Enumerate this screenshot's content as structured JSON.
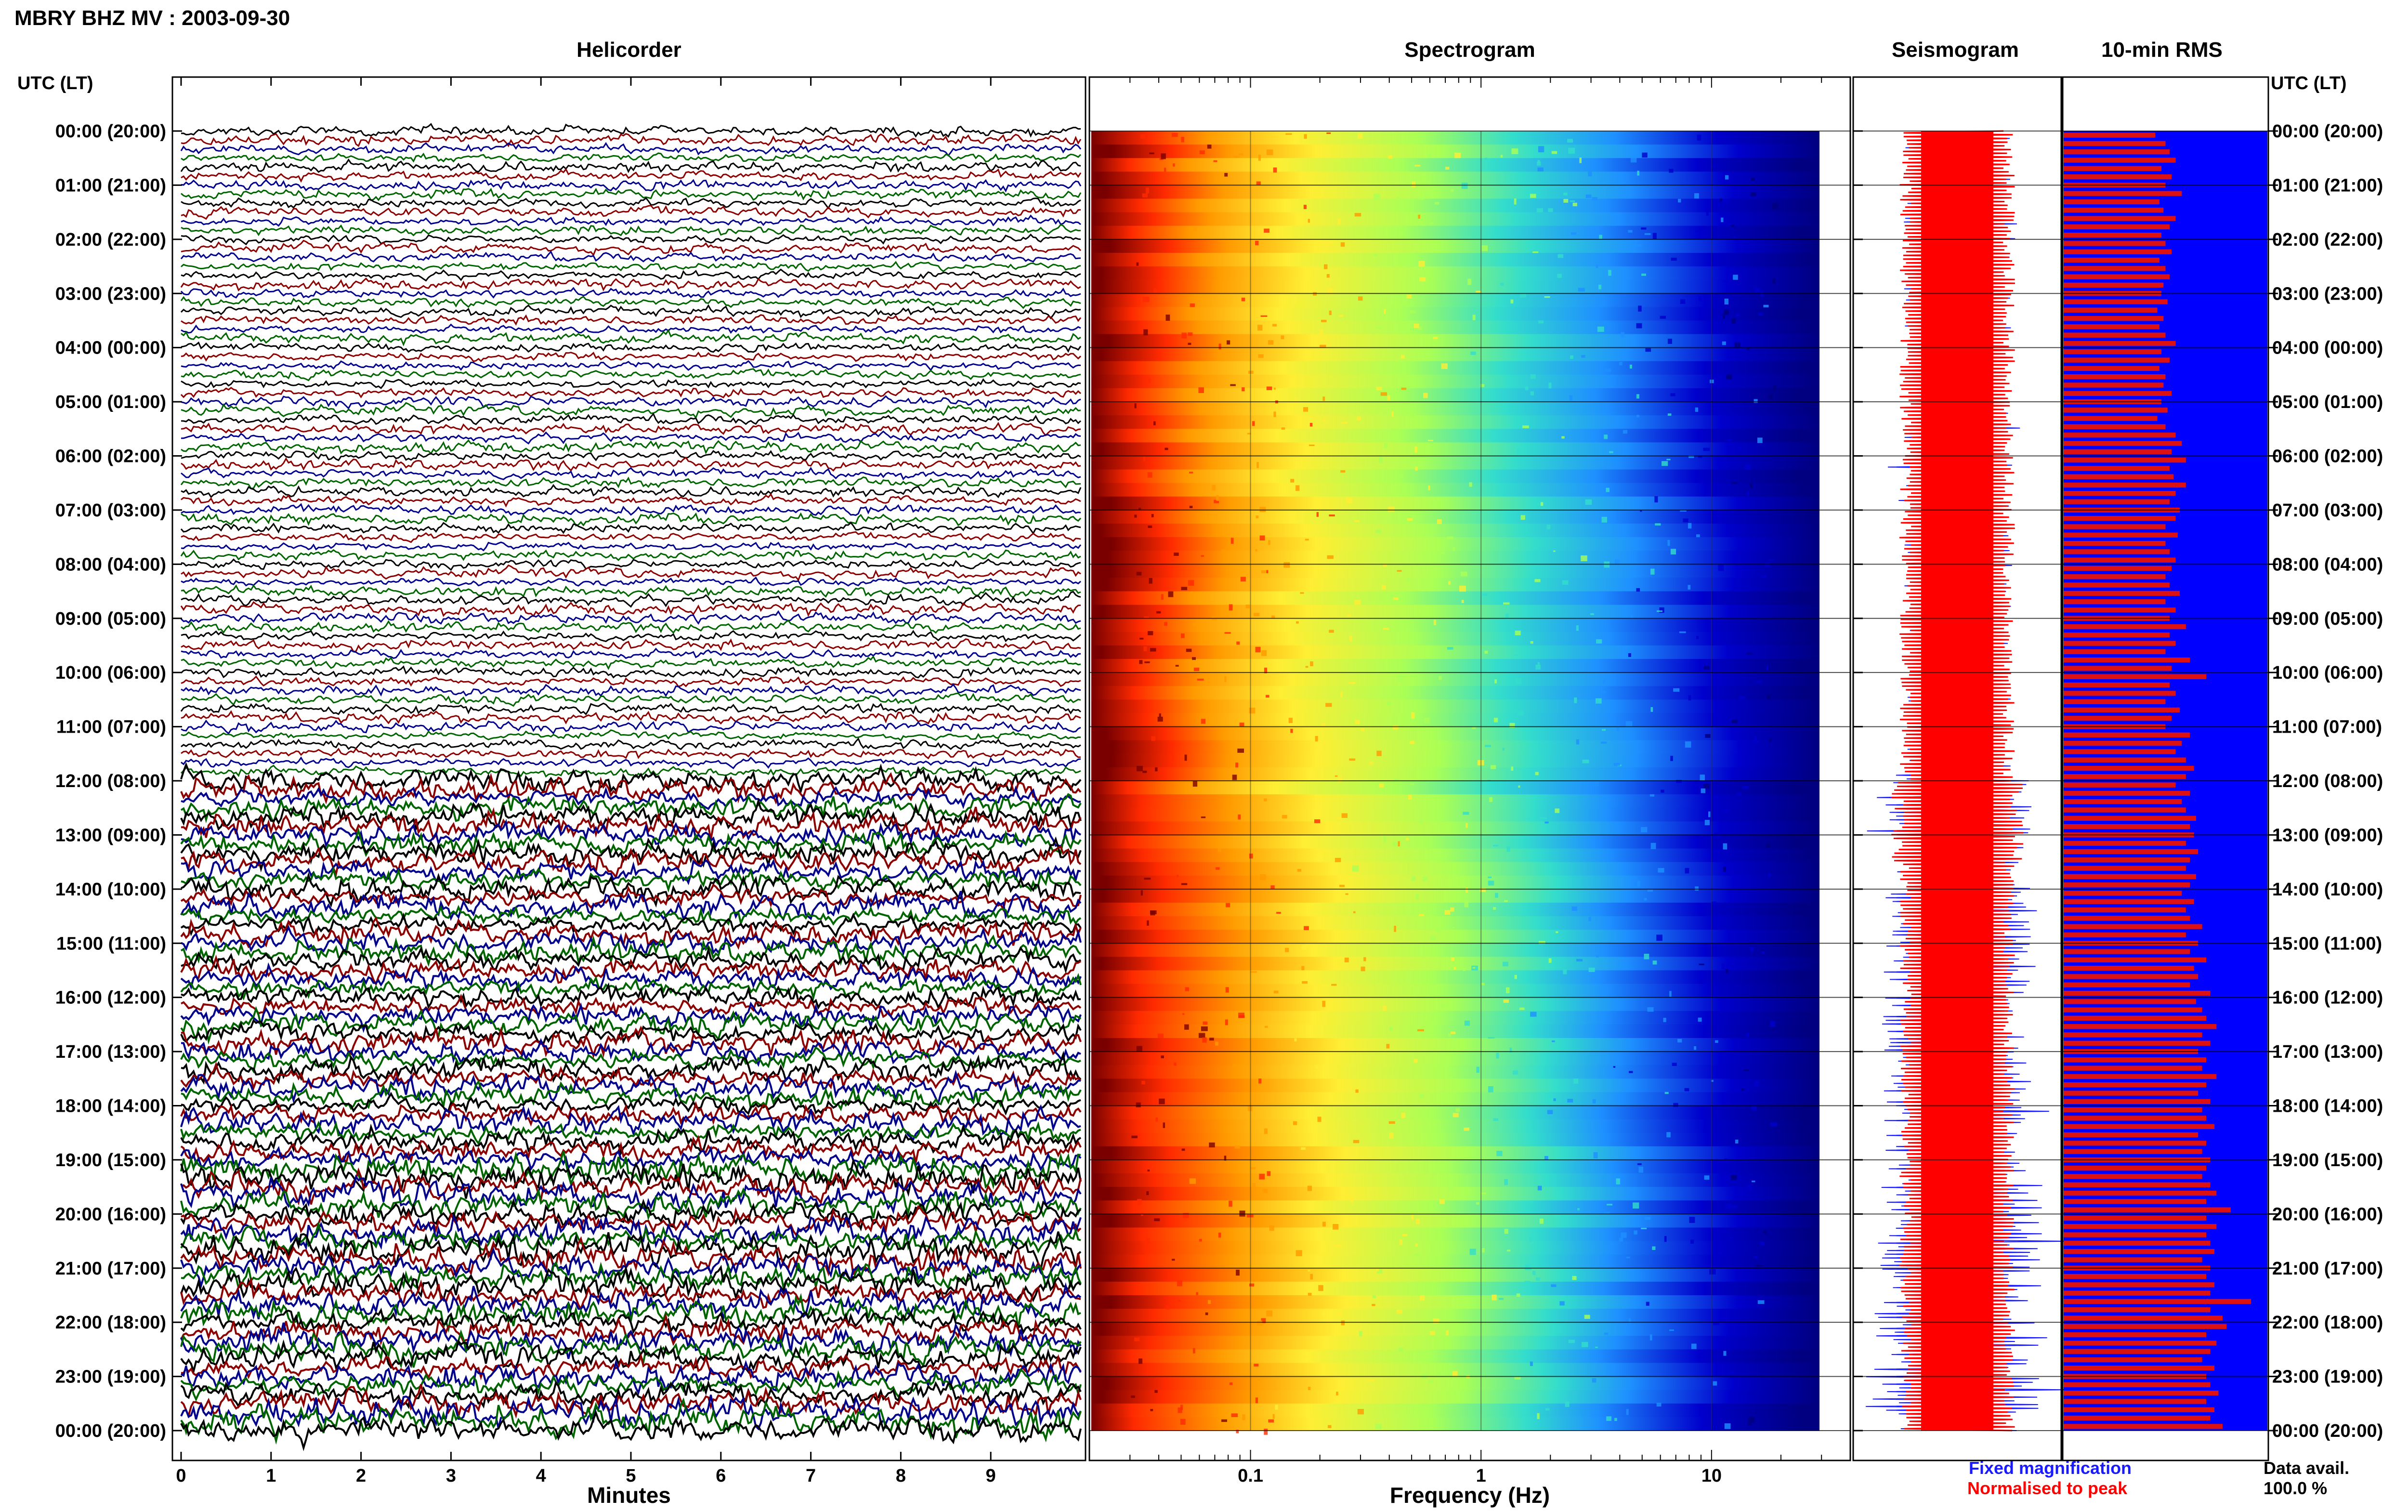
{
  "header": {
    "title": "MBRY BHZ MV : 2003-09-30",
    "utc_label_left": "UTC (LT)",
    "utc_label_right": "UTC (LT)"
  },
  "panels": {
    "helicorder": "Helicorder",
    "spectrogram": "Spectrogram",
    "seismogram": "Seismogram",
    "rms": "10-min RMS"
  },
  "time_labels": [
    "00:00 (20:00)",
    "01:00 (21:00)",
    "02:00 (22:00)",
    "03:00 (23:00)",
    "04:00 (00:00)",
    "05:00 (01:00)",
    "06:00 (02:00)",
    "07:00 (03:00)",
    "08:00 (04:00)",
    "09:00 (05:00)",
    "10:00 (06:00)",
    "11:00 (07:00)",
    "12:00 (08:00)",
    "13:00 (09:00)",
    "14:00 (10:00)",
    "15:00 (11:00)",
    "16:00 (12:00)",
    "17:00 (13:00)",
    "18:00 (14:00)",
    "19:00 (15:00)",
    "20:00 (16:00)",
    "21:00 (17:00)",
    "22:00 (18:00)",
    "23:00 (19:00)",
    "00:00 (20:00)"
  ],
  "legend": {
    "fixed": "Fixed magnification",
    "normalised": "Normalised to peak",
    "fixed_color": "#1a1aff",
    "normalised_color": "#ff0000"
  },
  "data_avail": {
    "label": "Data avail.",
    "value": "100.0 %"
  },
  "chart_data": [
    {
      "type": "line",
      "panel": "Helicorder",
      "xlabel": "Minutes",
      "x_ticks": [
        0,
        1,
        2,
        3,
        4,
        5,
        6,
        7,
        8,
        9
      ],
      "xlim": [
        0,
        10
      ],
      "trace_colors": [
        "#000000",
        "#8b0000",
        "#00008b",
        "#006400"
      ],
      "noise_level": {
        "quiet_until_hour": 12,
        "note_hours": [
          0,
          24
        ]
      }
    },
    {
      "type": "heatmap",
      "panel": "Spectrogram",
      "xlabel": "Frequency (Hz)",
      "x_ticks": [
        "0.1",
        "1",
        "10"
      ],
      "xlim": [
        0.02,
        40
      ],
      "x_scale": "log",
      "colormap": [
        "#7a0000",
        "#ff2a00",
        "#ff9a00",
        "#ffee33",
        "#aaff55",
        "#33ddcc",
        "#1e90ff",
        "#0000cc",
        "#000080"
      ]
    },
    {
      "type": "line",
      "panel": "Seismogram",
      "series": [
        {
          "name": "Fixed magnification",
          "color": "#1a1aff"
        },
        {
          "name": "Normalised to peak",
          "color": "#ff0000"
        }
      ]
    },
    {
      "type": "bar",
      "panel": "10-min RMS",
      "orientation": "horizontal",
      "bar_color": "#dd1111",
      "background_color": "#0000ff",
      "values": [
        0.45,
        0.5,
        0.52,
        0.55,
        0.48,
        0.53,
        0.5,
        0.58,
        0.47,
        0.49,
        0.55,
        0.52,
        0.48,
        0.5,
        0.53,
        0.47,
        0.5,
        0.52,
        0.49,
        0.48,
        0.51,
        0.46,
        0.49,
        0.47,
        0.5,
        0.55,
        0.48,
        0.52,
        0.47,
        0.5,
        0.49,
        0.53,
        0.48,
        0.51,
        0.46,
        0.5,
        0.55,
        0.58,
        0.53,
        0.6,
        0.52,
        0.54,
        0.6,
        0.55,
        0.52,
        0.57,
        0.55,
        0.5,
        0.56,
        0.5,
        0.52,
        0.55,
        0.53,
        0.5,
        0.52,
        0.57,
        0.5,
        0.55,
        0.52,
        0.6,
        0.52,
        0.55,
        0.5,
        0.62,
        0.53,
        0.7,
        0.52,
        0.55,
        0.5,
        0.57,
        0.53,
        0.5,
        0.62,
        0.58,
        0.55,
        0.6,
        0.64,
        0.6,
        0.55,
        0.62,
        0.58,
        0.6,
        0.65,
        0.62,
        0.64,
        0.6,
        0.66,
        0.62,
        0.6,
        0.65,
        0.62,
        0.58,
        0.64,
        0.6,
        0.62,
        0.68,
        0.6,
        0.66,
        0.62,
        0.7,
        0.64,
        0.66,
        0.62,
        0.72,
        0.65,
        0.68,
        0.7,
        0.75,
        0.68,
        0.72,
        0.66,
        0.7,
        0.68,
        0.75,
        0.7,
        0.66,
        0.72,
        0.68,
        0.7,
        0.74,
        0.66,
        0.7,
        0.68,
        0.72,
        0.7,
        0.68,
        0.72,
        0.75,
        0.7,
        0.82,
        0.7,
        0.75,
        0.7,
        0.72,
        0.74,
        0.68,
        0.72,
        0.7,
        0.74,
        0.72,
        0.92,
        0.72,
        0.78,
        0.8,
        0.7,
        0.75,
        0.72,
        0.68,
        0.74,
        0.7,
        0.72,
        0.76,
        0.7,
        0.74,
        0.72,
        0.78
      ]
    }
  ]
}
